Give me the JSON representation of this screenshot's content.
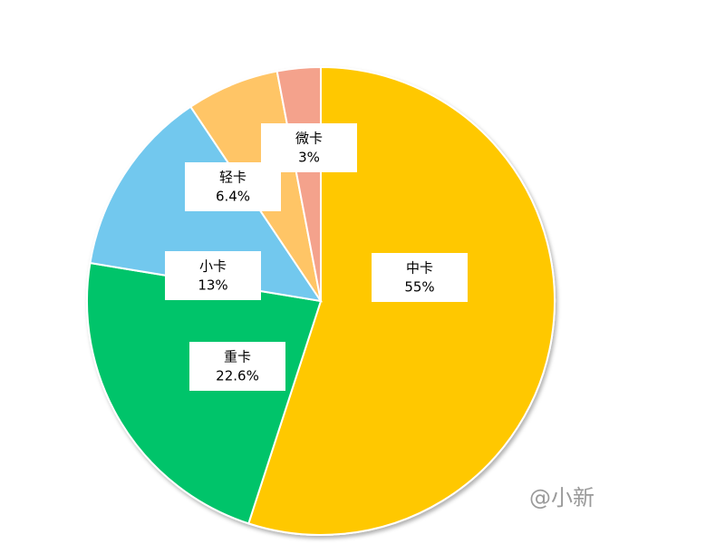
{
  "chart_data": {
    "type": "pie",
    "categories": [
      "中卡",
      "重卡",
      "小卡",
      "轻卡",
      "微卡"
    ],
    "values": [
      55,
      22.6,
      13,
      6.4,
      3
    ],
    "value_labels": [
      "55%",
      "22.6%",
      "13%",
      "6.4%",
      "3%"
    ],
    "colors": [
      "#ffc800",
      "#00c46a",
      "#72c8ee",
      "#ffc566",
      "#f4a28c"
    ],
    "watermark": "@小新"
  }
}
